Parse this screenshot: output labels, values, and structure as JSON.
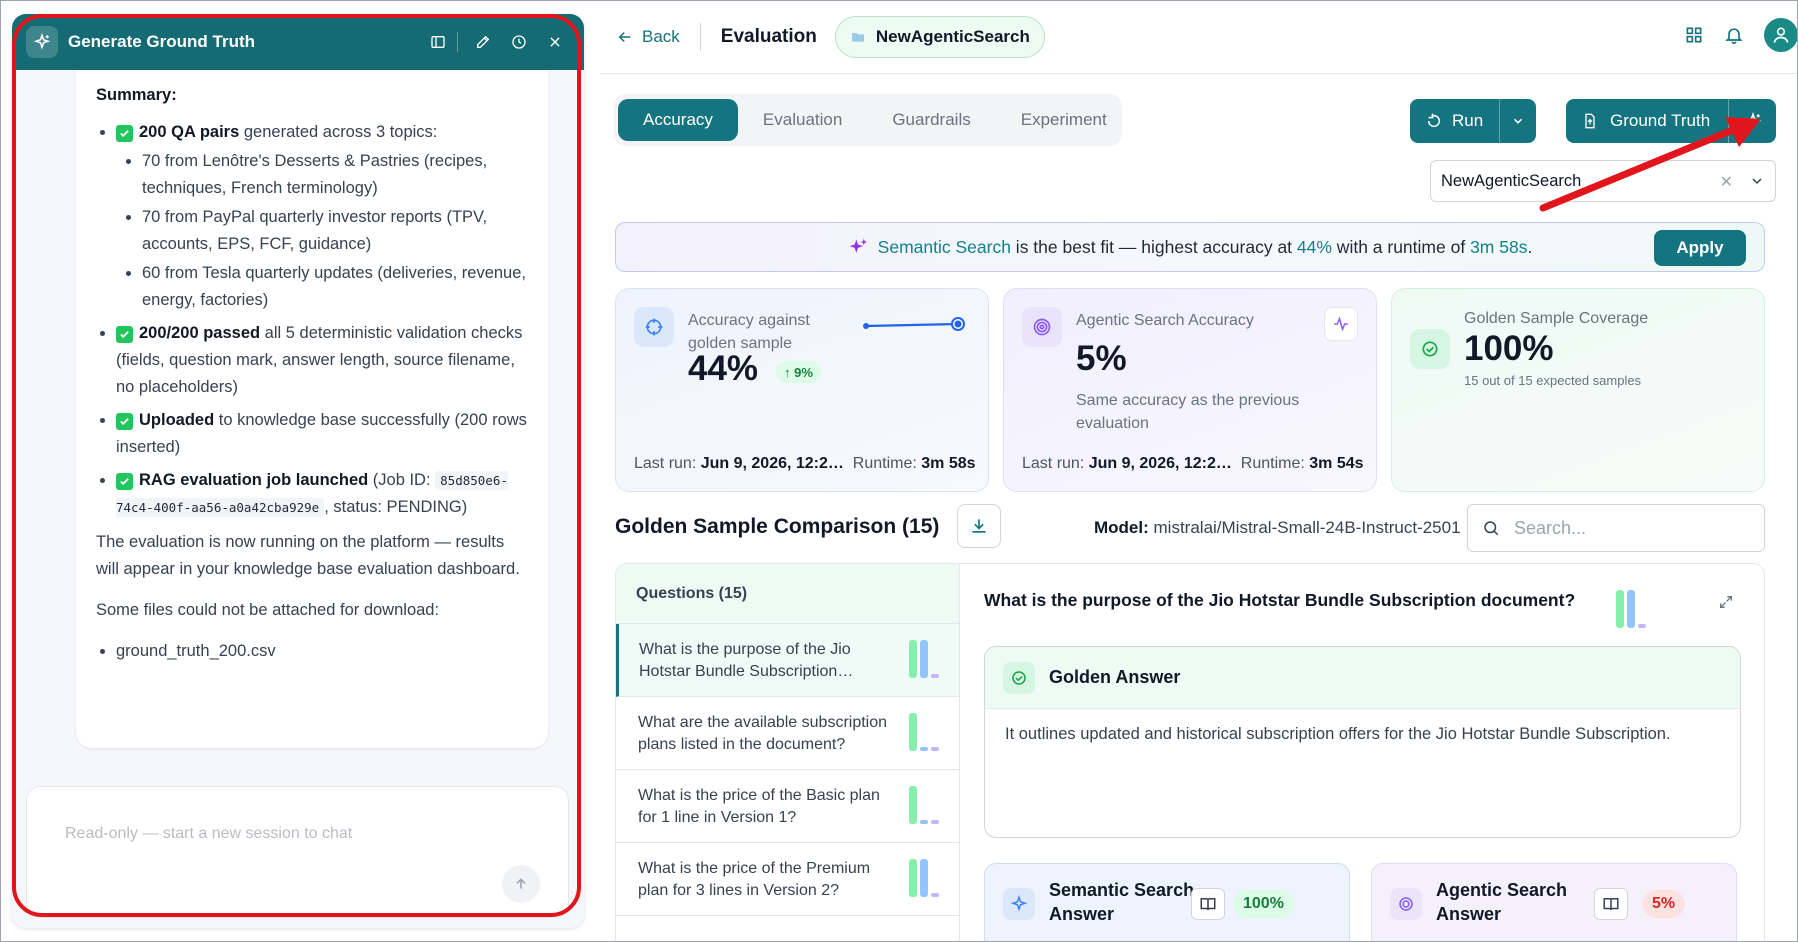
{
  "chat": {
    "title": "Generate Ground Truth",
    "summary_label": "Summary:",
    "bullets": {
      "qa_bold": "200 QA pairs",
      "qa_rest": " generated across 3 topics:",
      "topics": [
        "70 from Lenôtre's Desserts & Pastries (recipes, techniques, French terminology)",
        "70 from PayPal quarterly investor reports (TPV, accounts, EPS, FCF, guidance)",
        "60 from Tesla quarterly updates (deliveries, revenue, energy, factories)"
      ],
      "passed_bold": "200/200 passed",
      "passed_rest": " all 5 deterministic validation checks (fields, question mark, answer length, source filename, no placeholders)",
      "uploaded_bold": "Uploaded",
      "uploaded_rest": " to knowledge base successfully (200 rows inserted)",
      "rag_bold": "RAG evaluation job launched",
      "rag_rest": " (Job ID: ",
      "job_id": "85d850e6-74c4-400f-aa56-a0a42cba929e",
      "rag_status": ", status: PENDING)"
    },
    "paragraph": "The evaluation is now running on the platform — results will appear in your knowledge base evaluation dashboard.",
    "files_note": "Some files could not be attached for download:",
    "files": [
      "ground_truth_200.csv"
    ],
    "input_placeholder": "Read-only — start a new session to chat"
  },
  "topbar": {
    "back_label": "Back",
    "page_title": "Evaluation",
    "project_chip": "NewAgenticSearch"
  },
  "tabs": [
    "Accuracy",
    "Evaluation",
    "Guardrails",
    "Experiment"
  ],
  "active_tab": "Accuracy",
  "actions": {
    "run_label": "Run",
    "ground_truth_label": "Ground Truth"
  },
  "select": {
    "value": "NewAgenticSearch"
  },
  "banner": {
    "best": "Semantic Search",
    "mid": " is the best fit — highest accuracy at ",
    "accuracy": "44%",
    "mid2": " with a runtime of ",
    "runtime": "3m 58s",
    "end": ".",
    "apply_label": "Apply"
  },
  "cards": {
    "accuracy": {
      "label_line1": "Accuracy against",
      "label_line2": "golden sample",
      "value": "44%",
      "delta": "↑ 9%",
      "last_run_label": "Last run:",
      "last_run": "Jun 9, 2026, 12:2…",
      "runtime_label": "Runtime:",
      "runtime": "3m 58s"
    },
    "agentic": {
      "label": "Agentic Search Accuracy",
      "value": "5%",
      "note_line1": "Same accuracy as the previous",
      "note_line2": "evaluation",
      "last_run_label": "Last run:",
      "last_run": "Jun 9, 2026, 12:2…",
      "runtime_label": "Runtime:",
      "runtime": "3m 54s"
    },
    "coverage": {
      "label": "Golden Sample Coverage",
      "value": "100%",
      "sub": "15 out of 15 expected samples"
    }
  },
  "comparison": {
    "title": "Golden Sample Comparison (15)",
    "model_label": "Model:",
    "model": "mistralai/Mistral-Small-24B-Instruct-2501",
    "search_placeholder": "Search...",
    "questions_header": "Questions (15)",
    "questions": [
      "What is the purpose of the Jio Hotstar Bundle Subscription…",
      "What are the available subscription plans listed in the document?",
      "What is the price of the Basic plan for 1 line in Version 1?",
      "What is the price of the Premium plan for 3 lines in Version 2?"
    ],
    "selected_question": "What is the purpose of the Jio Hotstar Bundle Subscription document?",
    "golden_label": "Golden Answer",
    "golden_answer": "It outlines updated and historical subscription offers for the Jio Hotstar Bundle Subscription.",
    "semantic_label_1": "Semantic Search",
    "semantic_label_2": "Answer",
    "semantic_score": "100%",
    "agentic_label_1": "Agentic Search",
    "agentic_label_2": "Answer",
    "agentic_score": "5%"
  },
  "colors": {
    "primary": "#147480",
    "highlight": "#e0161c",
    "semantic_bar": "#93c5fd",
    "golden_bar": "#86efac",
    "agentic_bar": "#c4b5fd"
  }
}
